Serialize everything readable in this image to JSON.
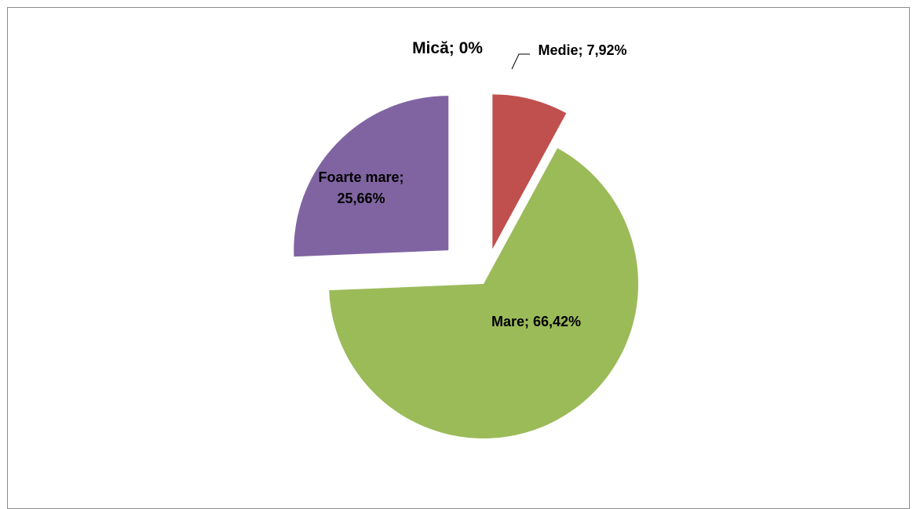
{
  "chart_data": {
    "type": "pie",
    "title": "",
    "categories": [
      "Mică",
      "Medie",
      "Mare",
      "Foarte mare"
    ],
    "values": [
      0,
      7.92,
      66.42,
      25.66
    ],
    "unit": "%",
    "exploded": true,
    "legend": "none",
    "colors": [
      "#4f81bd",
      "#c0504d",
      "#9bbb59",
      "#8064a2"
    ],
    "data_labels": [
      [
        "Mică; 0%"
      ],
      [
        "Medie; 7,92%"
      ],
      [
        "Mare; 66,42%"
      ],
      [
        "Foarte mare;",
        "25,66%"
      ]
    ]
  }
}
